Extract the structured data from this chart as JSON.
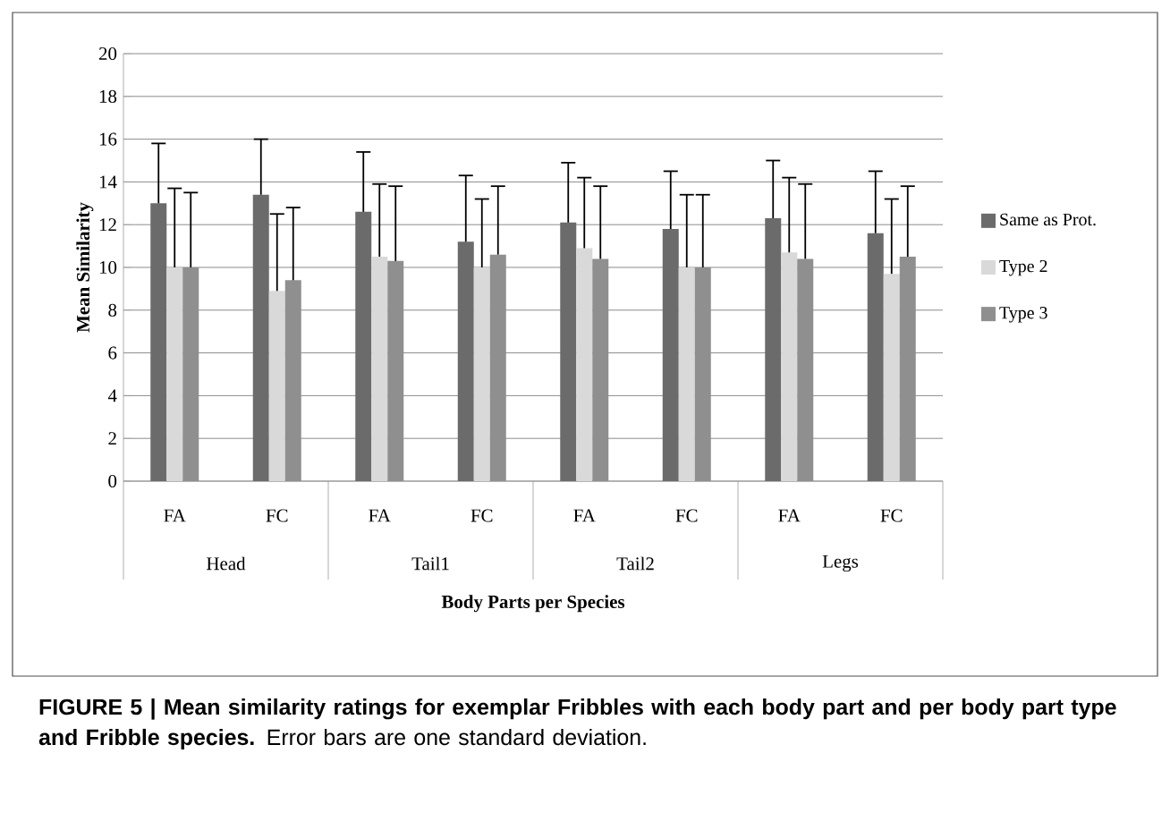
{
  "chart_data": {
    "type": "bar",
    "xlabel": "Body Parts per Species",
    "ylabel": "Mean Similarity",
    "categories": [
      "FA",
      "FC",
      "FA",
      "FC",
      "FA",
      "FC",
      "FA",
      "FC"
    ],
    "series": [
      {
        "name": "Same as Prot.",
        "color": "#6b6b6b",
        "values": [
          13.0,
          13.4,
          12.6,
          11.2,
          12.1,
          11.8,
          12.3,
          11.6
        ],
        "errors": [
          [
            13.0,
            15.8
          ],
          [
            13.4,
            16.0
          ],
          [
            12.6,
            15.4
          ],
          [
            11.2,
            14.3
          ],
          [
            12.1,
            14.9
          ],
          [
            11.8,
            14.5
          ],
          [
            12.3,
            15.0
          ],
          [
            11.6,
            14.5
          ]
        ]
      },
      {
        "name": "Type 2",
        "color": "#d9d9d9",
        "values": [
          10.0,
          8.9,
          10.5,
          10.0,
          10.9,
          10.0,
          10.7,
          9.7
        ],
        "errors": [
          [
            10.0,
            13.7
          ],
          [
            8.9,
            12.5
          ],
          [
            10.5,
            13.9
          ],
          [
            10.0,
            13.2
          ],
          [
            10.9,
            14.2
          ],
          [
            10.0,
            13.4
          ],
          [
            10.7,
            14.2
          ],
          [
            9.7,
            13.2
          ]
        ]
      },
      {
        "name": "Type 3",
        "color": "#8f8f8f",
        "values": [
          10.0,
          9.4,
          10.3,
          10.6,
          10.4,
          10.0,
          10.4,
          10.5
        ],
        "errors": [
          [
            10.0,
            13.5
          ],
          [
            9.4,
            12.8
          ],
          [
            10.3,
            13.8
          ],
          [
            10.6,
            13.8
          ],
          [
            10.4,
            13.8
          ],
          [
            10.0,
            13.4
          ],
          [
            10.4,
            13.9
          ],
          [
            10.5,
            13.8
          ]
        ]
      }
    ],
    "ylim": [
      0,
      20
    ],
    "yticks": [
      0,
      2,
      4,
      6,
      8,
      10,
      12,
      14,
      16,
      18,
      20
    ],
    "grid": "y",
    "legend": "right",
    "annotations": [
      "Head",
      "Tail1",
      "Tail2",
      "Legs",
      "**FIGURE 5 | Mean similarity ratings for exemplar Fribbles with each body part and per body part type and Fribble species.** Error bars are one standard deviation."
    ]
  }
}
